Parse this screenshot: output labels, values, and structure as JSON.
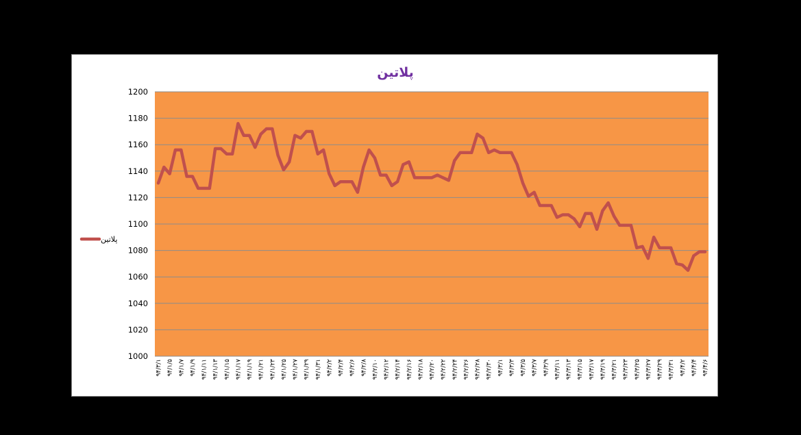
{
  "chart_data": {
    "type": "line",
    "title": "پلاتین",
    "legend_position": "left",
    "grid": true,
    "colors": {
      "plot_background": "#F79646",
      "series_line": "#C0504D",
      "title": "#7030A0",
      "gridline": "#8c8c8c"
    },
    "ylim": [
      1000,
      1200
    ],
    "y_ticks": [
      "1200",
      "1180",
      "1160",
      "1140",
      "1120",
      "1100",
      "1080",
      "1060",
      "1040",
      "1020",
      "1000"
    ],
    "x_tick_labels": [
      "۹۴/۳/۱",
      "۹۴/۱/۵",
      "۹۴/۱/۷",
      "۹۴/۱/۹",
      "۹۴/۱/۱۱",
      "۹۴/۱/۱۳",
      "۹۴/۱/۱۵",
      "۹۴/۱/۱۷",
      "۹۴/۱/۱۹",
      "۹۴/۱/۲۱",
      "۹۴/۱/۲۳",
      "۹۴/۱/۲۵",
      "۹۴/۱/۲۷",
      "۹۴/۱/۲۹",
      "۹۴/۱/۳۱",
      "۹۴/۲/۲",
      "۹۴/۲/۴",
      "۹۴/۲/۶",
      "۹۴/۲/۸",
      "۹۴/۲/۱۰",
      "۹۴/۲/۱۲",
      "۹۴/۲/۱۴",
      "۹۴/۲/۱۶",
      "۹۴/۲/۱۸",
      "۹۴/۲/۲۰",
      "۹۴/۲/۲۲",
      "۹۴/۲/۲۴",
      "۹۴/۲/۲۶",
      "۹۴/۲/۲۸",
      "۹۴/۲/۳۰",
      "۹۴/۳/۱",
      "۹۴/۳/۳",
      "۹۴/۳/۵",
      "۹۴/۳/۷",
      "۹۴/۳/۹",
      "۹۴/۳/۱۱",
      "۹۴/۳/۱۳",
      "۹۴/۳/۱۵",
      "۹۴/۳/۱۷",
      "۹۴/۳/۱۹",
      "۹۴/۳/۲۱",
      "۹۴/۳/۲۳",
      "۹۴/۳/۲۵",
      "۹۴/۳/۲۷",
      "۹۴/۳/۲۹",
      "۹۴/۳/۳۱",
      "۹۴/۴/۲",
      "۹۴/۴/۴",
      "۹۴/۴/۶"
    ],
    "series": [
      {
        "name": "پلاتین",
        "values": [
          1131,
          1143,
          1138,
          1156,
          1156,
          1136,
          1136,
          1127,
          1127,
          1127,
          1157,
          1157,
          1153,
          1153,
          1176,
          1167,
          1167,
          1158,
          1168,
          1172,
          1172,
          1152,
          1141,
          1147,
          1167,
          1165,
          1170,
          1170,
          1153,
          1156,
          1138,
          1129,
          1132,
          1132,
          1132,
          1124,
          1143,
          1156,
          1150,
          1137,
          1137,
          1129,
          1132,
          1145,
          1147,
          1135,
          1135,
          1135,
          1135,
          1137,
          1135,
          1133,
          1148,
          1154,
          1154,
          1154,
          1168,
          1165,
          1154,
          1156,
          1154,
          1154,
          1154,
          1145,
          1131,
          1121,
          1124,
          1114,
          1114,
          1114,
          1105,
          1107,
          1107,
          1104,
          1098,
          1108,
          1108,
          1096,
          1110,
          1116,
          1106,
          1099,
          1099,
          1099,
          1082,
          1083,
          1074,
          1090,
          1082,
          1082,
          1082,
          1070,
          1069,
          1065,
          1076,
          1079,
          1079
        ]
      }
    ]
  }
}
